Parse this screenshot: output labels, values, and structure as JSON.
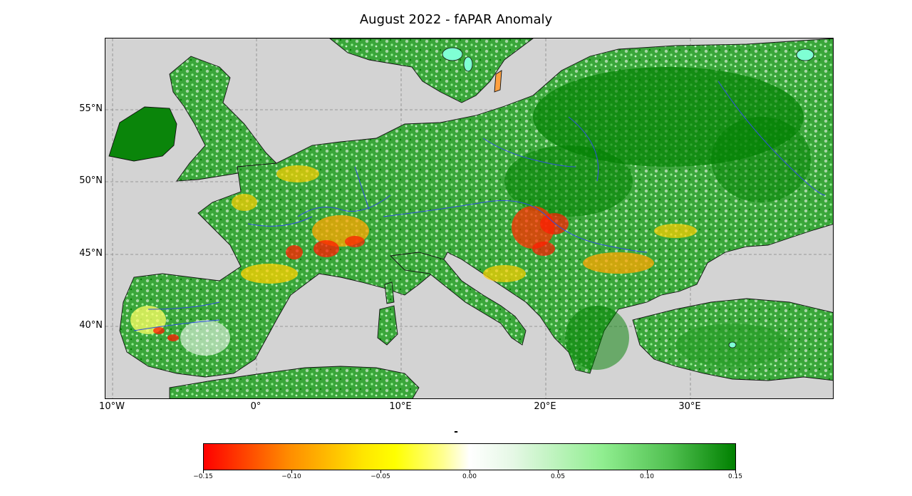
{
  "title": "August 2022  - fAPAR Anomaly",
  "latitude_labels": [
    "55°N",
    "50°N",
    "45°N",
    "40°N"
  ],
  "longitude_labels": [
    "10°W",
    "0°",
    "10°E",
    "20°E",
    "30°E"
  ],
  "colorbar": {
    "title": "-",
    "tick_labels": [
      "−0.15",
      "−0.10",
      "−0.05",
      "0.00",
      "0.05",
      "0.10",
      "0.15"
    ],
    "min": -0.15,
    "max": 0.15
  },
  "colors": {
    "sea": "#d3d3d3",
    "strong_negative": "#ff0000",
    "moderate_negative": "#ffa500",
    "mild_negative": "#ffff00",
    "neutral": "#ffffff",
    "mild_positive": "#90ee90",
    "strong_positive": "#008000",
    "rivers": "#3050e0",
    "lakes": "#7fffd4"
  }
}
